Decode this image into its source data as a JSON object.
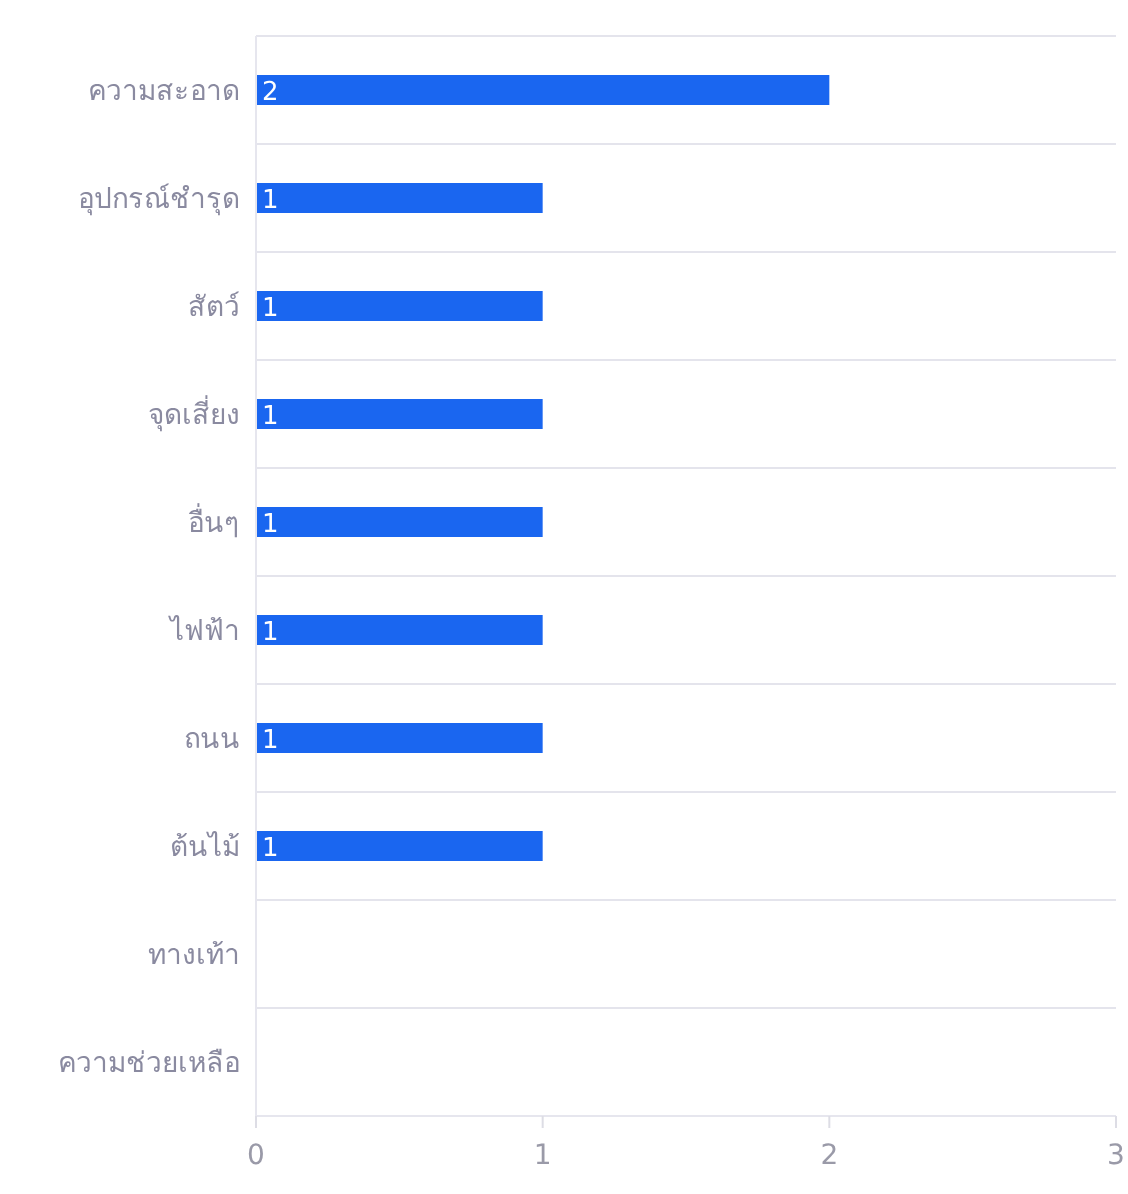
{
  "chart_data": {
    "type": "bar",
    "orientation": "horizontal",
    "categories": [
      "ความสะอาด",
      "อุปกรณ์ชำรุด",
      "สัตว์",
      "จุดเสี่ยง",
      "อื่นๆ",
      "ไฟฟ้า",
      "ถนน",
      "ต้นไม้",
      "ทางเท้า",
      "ความช่วยเหลือ"
    ],
    "values": [
      2,
      1,
      1,
      1,
      1,
      1,
      1,
      1,
      0,
      0
    ],
    "value_labels": [
      "2",
      "1",
      "1",
      "1",
      "1",
      "1",
      "1",
      "1",
      null,
      null
    ],
    "color": "#1a66f0",
    "xlim": [
      0,
      3
    ],
    "xticks": [
      0,
      1,
      2,
      3
    ],
    "grid": "y"
  }
}
